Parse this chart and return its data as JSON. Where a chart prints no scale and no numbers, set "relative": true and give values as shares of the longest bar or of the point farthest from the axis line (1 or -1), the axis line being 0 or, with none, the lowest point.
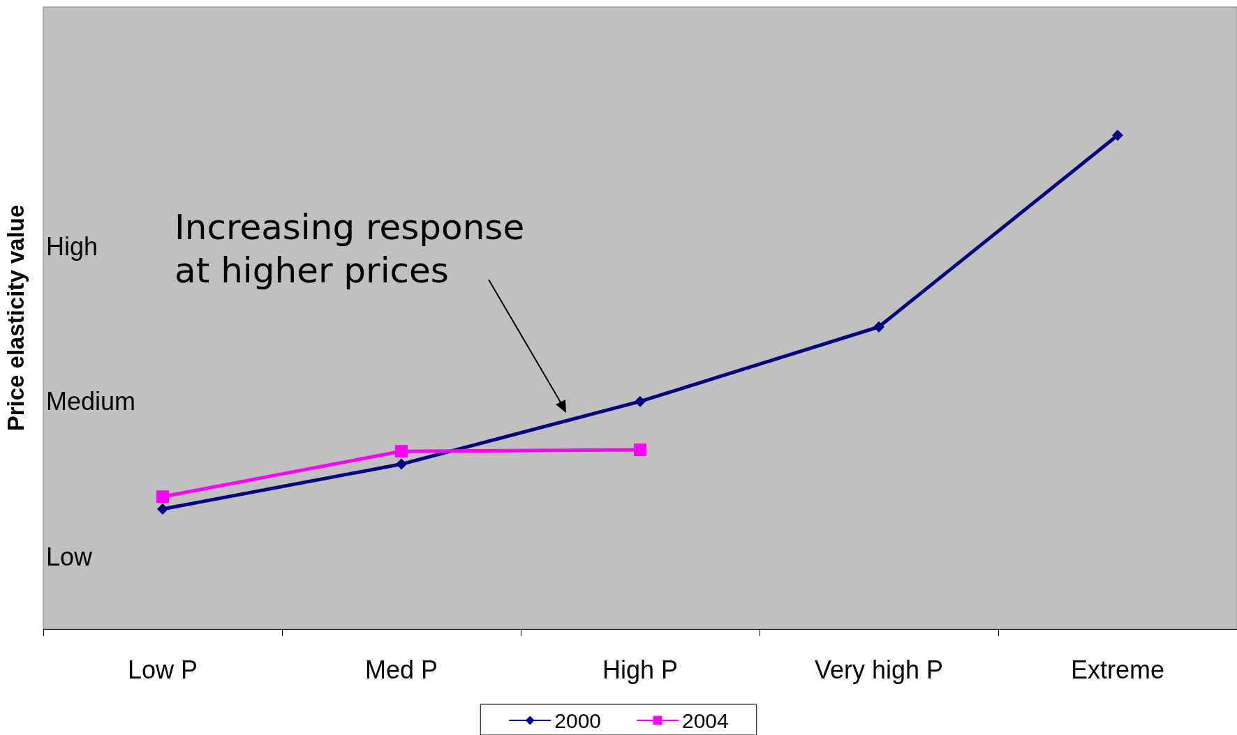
{
  "chart_data": {
    "type": "line",
    "ylabel": "Price elasticity value",
    "relative": true,
    "categories": [
      "Low P",
      "Med P",
      "High P",
      "Very high P",
      "Extreme"
    ],
    "series": [
      {
        "name": "2000",
        "color": "#000080",
        "marker": "diamond",
        "values": [
          0.243,
          0.334,
          0.461,
          0.612,
          1
        ]
      },
      {
        "name": "2004",
        "color": "#ff00ff",
        "marker": "square",
        "values": [
          0.268,
          0.36,
          0.363,
          null,
          null
        ]
      }
    ],
    "legend": "bottom",
    "line_style": "solid",
    "annotations": [
      "Increasing response\nat higher prices",
      "High",
      "Medium",
      "Low"
    ]
  }
}
